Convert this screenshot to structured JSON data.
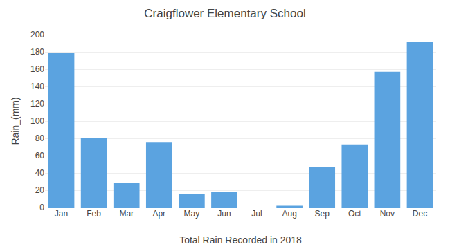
{
  "chart_data": {
    "type": "bar",
    "title": "Craigflower Elementary School",
    "xlabel": "Total Rain Recorded in 2018",
    "ylabel": "Rain_(mm)",
    "categories": [
      "Jan",
      "Feb",
      "Mar",
      "Apr",
      "May",
      "Jun",
      "Jul",
      "Aug",
      "Sep",
      "Oct",
      "Nov",
      "Dec"
    ],
    "values": [
      179,
      80,
      28,
      75,
      16,
      18,
      0,
      2,
      47,
      73,
      157,
      192
    ],
    "color": "#5ba3e0",
    "ylim": [
      0,
      200
    ],
    "yticks": [
      0,
      20,
      40,
      60,
      80,
      100,
      120,
      140,
      160,
      180,
      200
    ],
    "grid": true
  }
}
